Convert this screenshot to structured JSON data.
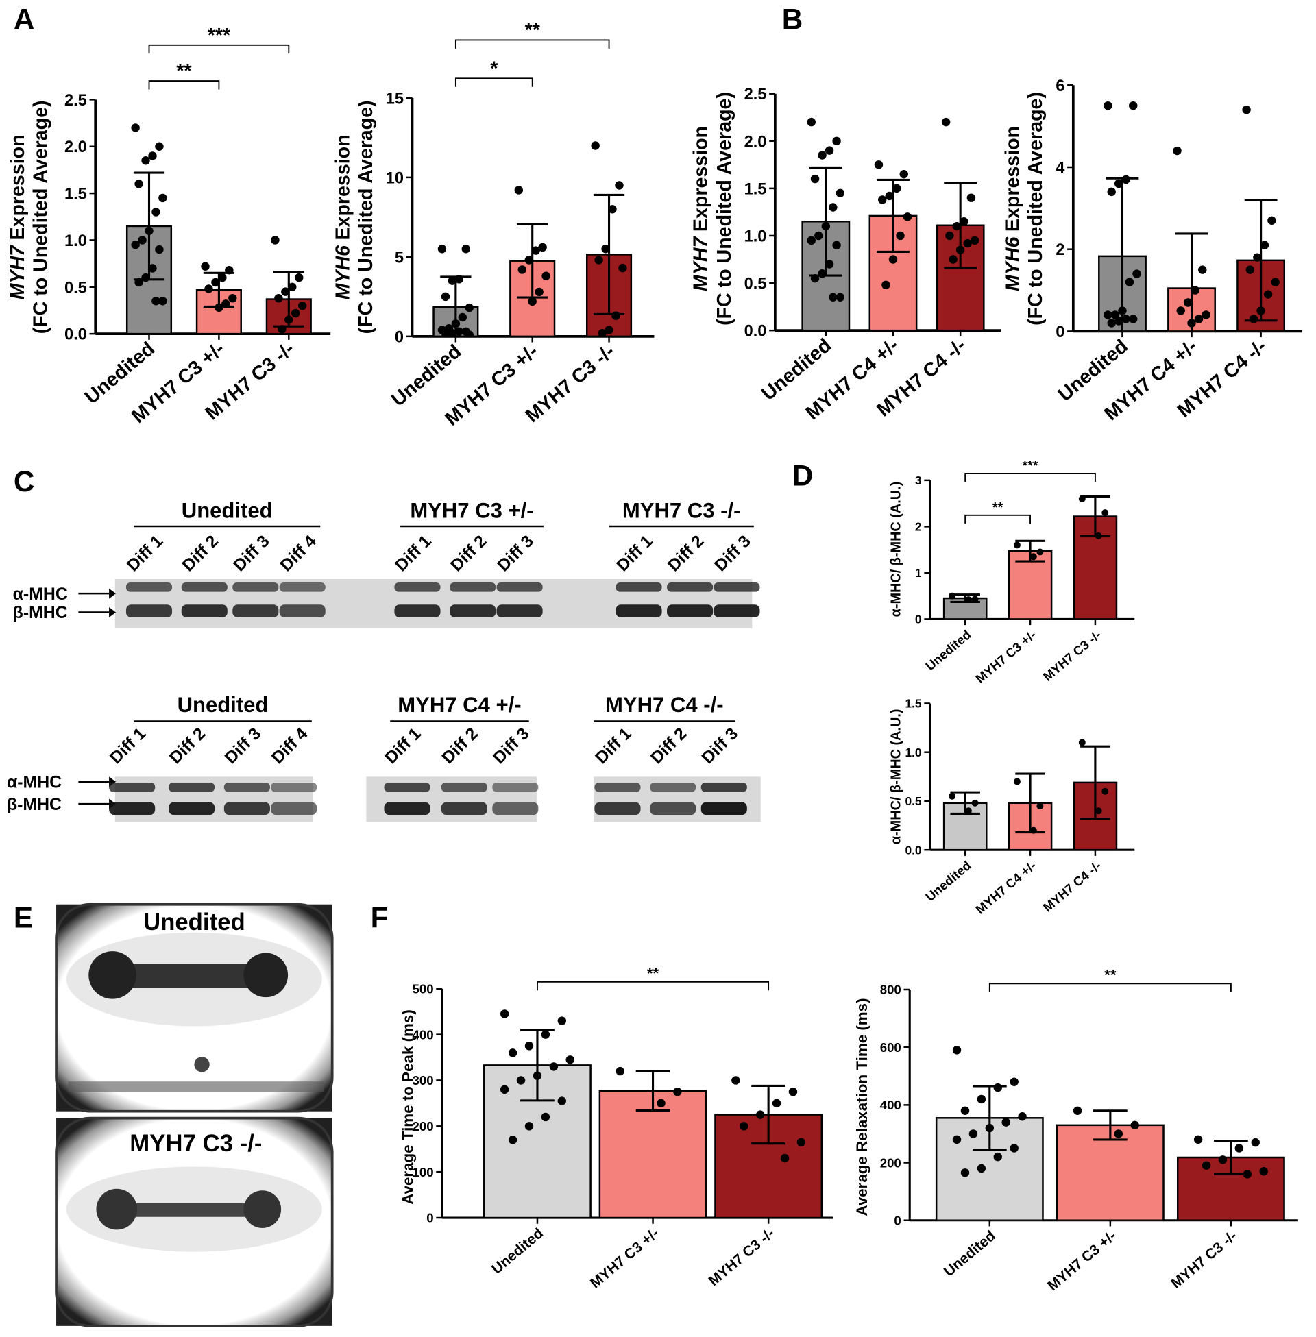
{
  "panels": [
    "A",
    "B",
    "C",
    "D",
    "E",
    "F"
  ],
  "chart_data": [
    {
      "type": "bar",
      "ylabel_gene": "MYH7",
      "ylabel": "Expression",
      "ylabel_line2": "(FC to Unedited Average)",
      "categories": [
        "Unedited",
        "MYH7 C3 +/-",
        "MYH7 C3 -/-"
      ],
      "colors": [
        "#8c8c8c",
        "#f4817c",
        "#9a1b1e"
      ],
      "values": [
        1.15,
        0.47,
        0.37
      ],
      "errors": [
        0.57,
        0.18,
        0.29
      ],
      "points": [
        [
          2.2,
          2.0,
          1.9,
          1.85,
          1.6,
          1.45,
          1.3,
          1.1,
          1.0,
          0.95,
          0.9,
          0.7,
          0.6,
          0.55,
          0.35,
          0.35
        ],
        [
          0.72,
          0.68,
          0.6,
          0.55,
          0.48,
          0.38,
          0.32,
          0.28
        ],
        [
          1.0,
          0.6,
          0.5,
          0.45,
          0.38,
          0.3,
          0.22,
          0.15,
          0.05
        ]
      ],
      "ylim": [
        0,
        2.5
      ],
      "yticks": [
        {
          "value": 0,
          "label": "0.0"
        },
        0.5,
        {
          "value": 1,
          "label": "1.0"
        },
        1.5,
        {
          "value": 2,
          "label": "2.0"
        },
        2.5
      ],
      "significance": [
        {
          "between": [
            "Unedited",
            "MYH7 C3 +/-"
          ],
          "label": "**"
        },
        {
          "between": [
            "Unedited",
            "MYH7 C3 -/-"
          ],
          "label": "***"
        }
      ]
    },
    {
      "type": "bar",
      "ylabel_gene": "MYH6",
      "ylabel": "Expression",
      "ylabel_line2": "(FC to Unedited Average)",
      "categories": [
        "Unedited",
        "MYH7 C3 +/-",
        "MYH7 C3 -/-"
      ],
      "colors": [
        "#8c8c8c",
        "#f4817c",
        "#9a1b1e"
      ],
      "values": [
        1.85,
        4.75,
        5.15
      ],
      "errors": [
        1.9,
        2.3,
        3.75
      ],
      "points": [
        [
          5.5,
          5.5,
          3.6,
          3.5,
          2.5,
          1.8,
          1.2,
          0.8,
          0.5,
          0.4,
          0.3,
          0.3,
          0.2,
          0.2,
          0.1
        ],
        [
          9.2,
          5.6,
          5.4,
          4.8,
          4.2,
          3.8,
          2.8,
          2.2
        ],
        [
          12,
          9.5,
          8,
          5.5,
          4.8,
          4.3,
          1.3,
          0.4,
          0.2
        ]
      ],
      "ylim": [
        0,
        15
      ],
      "yticks": [
        0,
        5,
        10,
        15
      ],
      "significance": [
        {
          "between": [
            "Unedited",
            "MYH7 C3 +/-"
          ],
          "label": "*"
        },
        {
          "between": [
            "Unedited",
            "MYH7 C3 -/-"
          ],
          "label": "**"
        }
      ]
    },
    {
      "type": "bar",
      "ylabel_gene": "MYH7",
      "ylabel": "Expression",
      "ylabel_line2": "(FC to Unedited Average)",
      "categories": [
        "Unedited",
        "MYH7 C4 +/-",
        "MYH7 C4 -/-"
      ],
      "colors": [
        "#8c8c8c",
        "#f4817c",
        "#9a1b1e"
      ],
      "values": [
        1.15,
        1.21,
        1.11
      ],
      "errors": [
        0.57,
        0.38,
        0.45
      ],
      "points": [
        [
          2.2,
          2.0,
          1.9,
          1.85,
          1.6,
          1.45,
          1.3,
          1.1,
          1.0,
          0.95,
          0.9,
          0.7,
          0.6,
          0.55,
          0.35,
          0.35
        ],
        [
          1.75,
          1.65,
          1.5,
          1.42,
          1.38,
          1.2,
          1.0,
          0.75,
          0.48
        ],
        [
          2.2,
          1.4,
          1.15,
          1.1,
          1.0,
          0.95,
          0.92,
          0.85,
          0.75
        ]
      ],
      "ylim": [
        0,
        2.5
      ],
      "yticks": [
        {
          "value": 0,
          "label": "0.0"
        },
        0.5,
        {
          "value": 1,
          "label": "1.0"
        },
        1.5,
        {
          "value": 2,
          "label": "2.0"
        },
        2.5
      ]
    },
    {
      "type": "bar",
      "ylabel_gene": "MYH6",
      "ylabel": "Expression",
      "ylabel_line2": "(FC to Unedited Average)",
      "categories": [
        "Unedited",
        "MYH7 C4 +/-",
        "MYH7 C4 -/-"
      ],
      "colors": [
        "#8c8c8c",
        "#f4817c",
        "#9a1b1e"
      ],
      "values": [
        1.83,
        1.05,
        1.73
      ],
      "errors": [
        1.9,
        1.33,
        1.47
      ],
      "points": [
        [
          5.5,
          5.5,
          3.7,
          3.6,
          3.4,
          1.4,
          1.2,
          0.5,
          0.4,
          0.4,
          0.3,
          0.3,
          0.25,
          0.2
        ],
        [
          4.4,
          1.5,
          1.0,
          0.7,
          0.5,
          0.4,
          0.3,
          0.2
        ],
        [
          5.4,
          2.7,
          2.1,
          1.8,
          1.5,
          1.2,
          0.9,
          0.5,
          0.3
        ]
      ],
      "ylim": [
        0,
        6
      ],
      "yticks": [
        0,
        2,
        4,
        6
      ]
    },
    {
      "type": "bar",
      "ylabel": "α-MHC/ β-MHC (A.U.)",
      "categories": [
        "Unedited",
        "MYH7 C3 +/-",
        "MYH7 C3 -/-"
      ],
      "colors": [
        "#999999",
        "#f4817c",
        "#9a1b1e"
      ],
      "values": [
        0.45,
        1.47,
        2.22
      ],
      "errors": [
        0.08,
        0.22,
        0.43
      ],
      "points": [
        [
          0.5,
          0.43,
          0.42
        ],
        [
          1.6,
          1.45,
          1.35
        ],
        [
          2.6,
          2.3,
          1.8
        ]
      ],
      "ylim": [
        0,
        3
      ],
      "yticks": [
        0,
        1,
        2,
        3
      ],
      "significance": [
        {
          "between": [
            "Unedited",
            "MYH7 C3 +/-"
          ],
          "label": "**"
        },
        {
          "between": [
            "Unedited",
            "MYH7 C3 -/-"
          ],
          "label": "***"
        }
      ]
    },
    {
      "type": "bar",
      "ylabel": "α-MHC/ β-MHC (A.U.)",
      "categories": [
        "Unedited",
        "MYH7 C4 +/-",
        "MYH7 C4 -/-"
      ],
      "colors": [
        "#c8c8c8",
        "#f4817c",
        "#9a1b1e"
      ],
      "values": [
        0.48,
        0.48,
        0.69
      ],
      "errors": [
        0.11,
        0.3,
        0.37
      ],
      "points": [
        [
          0.55,
          0.48,
          0.4
        ],
        [
          0.7,
          0.45,
          0.2
        ],
        [
          1.1,
          0.6,
          0.4
        ]
      ],
      "ylim": [
        0,
        1.5
      ],
      "yticks": [
        {
          "value": 0,
          "label": "0.0"
        },
        0.5,
        {
          "value": 1,
          "label": "1.0"
        },
        1.5
      ]
    },
    {
      "type": "bar",
      "ylabel": "Average Time to Peak (ms)",
      "categories": [
        "Unedited",
        "MYH7 C3 +/-",
        "MYH7 C3 -/-"
      ],
      "colors": [
        "#d6d6d6",
        "#f4817c",
        "#9a1b1e"
      ],
      "values": [
        333,
        277,
        225
      ],
      "errors": [
        77,
        43,
        63
      ],
      "points": [
        [
          445,
          430,
          400,
          375,
          360,
          345,
          330,
          310,
          300,
          280,
          255,
          220,
          200,
          170
        ],
        [
          320,
          275,
          250
        ],
        [
          300,
          275,
          250,
          225,
          200,
          165,
          130
        ]
      ],
      "ylim": [
        0,
        500
      ],
      "yticks": [
        0,
        100,
        200,
        300,
        400,
        500
      ],
      "significance": [
        {
          "between": [
            "Unedited",
            "MYH7 C3 -/-"
          ],
          "label": "**"
        }
      ]
    },
    {
      "type": "bar",
      "ylabel": "Average Relaxation Time (ms)",
      "categories": [
        "Unedited",
        "MYH7 C3 +/-",
        "MYH7 C3 -/-"
      ],
      "colors": [
        "#d6d6d6",
        "#f4817c",
        "#9a1b1e"
      ],
      "values": [
        355,
        330,
        218
      ],
      "errors": [
        110,
        50,
        58
      ],
      "points": [
        [
          590,
          480,
          460,
          420,
          380,
          360,
          340,
          320,
          300,
          280,
          250,
          220,
          180,
          165
        ],
        [
          380,
          330,
          300
        ],
        [
          280,
          270,
          250,
          210,
          190,
          170,
          160
        ]
      ],
      "ylim": [
        0,
        800
      ],
      "yticks": [
        0,
        200,
        400,
        600,
        800
      ],
      "significance": [
        {
          "between": [
            "Unedited",
            "MYH7 C3 -/-"
          ],
          "label": "**"
        }
      ]
    }
  ],
  "blots": [
    {
      "markers": [
        "α-MHC",
        "β-MHC"
      ],
      "groups": [
        {
          "label": "Unedited",
          "lanes": [
            "Diff 1",
            "Diff 2",
            "Diff 3",
            "Diff 4"
          ]
        },
        {
          "label": "MYH7 C3 +/-",
          "lanes": [
            "Diff 1",
            "Diff 2",
            "Diff 3"
          ]
        },
        {
          "label": "MYH7 C3 -/-",
          "lanes": [
            "Diff 1",
            "Diff 2",
            "Diff 3"
          ]
        }
      ]
    },
    {
      "markers": [
        "α-MHC",
        "β-MHC"
      ],
      "groups": [
        {
          "label": "Unedited",
          "lanes": [
            "Diff 1",
            "Diff 2",
            "Diff 3",
            "Diff 4"
          ]
        },
        {
          "label": "MYH7 C4 +/-",
          "lanes": [
            "Diff 1",
            "Diff 2",
            "Diff 3"
          ]
        },
        {
          "label": "MYH7 C4 -/-",
          "lanes": [
            "Diff 1",
            "Diff 2",
            "Diff 3"
          ]
        }
      ]
    }
  ],
  "images": [
    "Unedited",
    "MYH7 C3 -/-"
  ]
}
